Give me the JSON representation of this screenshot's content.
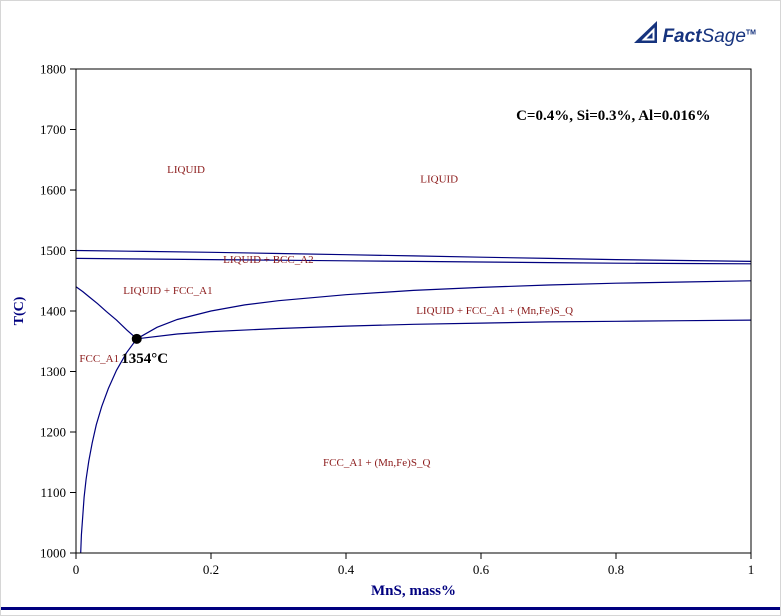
{
  "logo": {
    "fact": "Fact",
    "sage": "Sage",
    "tm": "TM"
  },
  "chart_data": {
    "type": "line",
    "title": "",
    "xlabel": "MnS, mass%",
    "ylabel": "T(C)",
    "xlim": [
      0,
      1
    ],
    "ylim": [
      1000,
      1800
    ],
    "xticks": [
      0,
      0.2,
      0.4,
      0.6,
      0.8,
      1
    ],
    "xtick_labels": [
      "0",
      "0.2",
      "0.4",
      "0.6",
      "0.8",
      "1"
    ],
    "yticks": [
      1000,
      1100,
      1200,
      1300,
      1400,
      1500,
      1600,
      1700,
      1800
    ],
    "grid": false,
    "axis_color": "#000000",
    "line_color": "#00007f",
    "phase_label_color": "#8b1a1a",
    "axis_title_color": "#00007f",
    "series": [
      {
        "name": "liquid-bcc-upper-boundary",
        "points": [
          [
            0,
            1500
          ],
          [
            0.1,
            1498.5
          ],
          [
            0.2,
            1497
          ],
          [
            0.3,
            1495
          ],
          [
            0.4,
            1493
          ],
          [
            0.5,
            1491
          ],
          [
            0.6,
            1489
          ],
          [
            0.7,
            1487
          ],
          [
            0.8,
            1485
          ],
          [
            0.9,
            1483.5
          ],
          [
            1,
            1482
          ]
        ]
      },
      {
        "name": "bcc-fcc-peritectic-line",
        "points": [
          [
            0,
            1487
          ],
          [
            0.1,
            1486
          ],
          [
            0.2,
            1485
          ],
          [
            0.3,
            1484
          ],
          [
            0.4,
            1483
          ],
          [
            0.5,
            1482
          ],
          [
            0.6,
            1481
          ],
          [
            0.7,
            1480
          ],
          [
            0.8,
            1479
          ],
          [
            0.9,
            1478.5
          ],
          [
            1,
            1478
          ]
        ]
      },
      {
        "name": "fcc-liquidus-left-branch",
        "points": [
          [
            0,
            1440
          ],
          [
            0.01,
            1432
          ],
          [
            0.02,
            1423
          ],
          [
            0.032,
            1412
          ],
          [
            0.045,
            1399
          ],
          [
            0.06,
            1385
          ],
          [
            0.075,
            1369
          ],
          [
            0.09,
            1354
          ]
        ]
      },
      {
        "name": "mns-saturation-boundary",
        "points": [
          [
            0.09,
            1354
          ],
          [
            0.12,
            1373
          ],
          [
            0.15,
            1386
          ],
          [
            0.2,
            1400
          ],
          [
            0.25,
            1410
          ],
          [
            0.3,
            1417
          ],
          [
            0.35,
            1422
          ],
          [
            0.4,
            1427
          ],
          [
            0.5,
            1434
          ],
          [
            0.6,
            1439
          ],
          [
            0.7,
            1443
          ],
          [
            0.8,
            1446
          ],
          [
            0.9,
            1448
          ],
          [
            1,
            1450
          ]
        ]
      },
      {
        "name": "fcc-mns-solidus-boundary",
        "points": [
          [
            0.09,
            1354
          ],
          [
            0.15,
            1362
          ],
          [
            0.2,
            1366
          ],
          [
            0.3,
            1371
          ],
          [
            0.4,
            1375
          ],
          [
            0.5,
            1378
          ],
          [
            0.6,
            1380
          ],
          [
            0.7,
            1382
          ],
          [
            0.8,
            1383
          ],
          [
            0.9,
            1384
          ],
          [
            1,
            1385
          ]
        ]
      },
      {
        "name": "fcc-solvus-steep-branch",
        "points": [
          [
            0.09,
            1354
          ],
          [
            0.075,
            1331
          ],
          [
            0.06,
            1302
          ],
          [
            0.048,
            1272
          ],
          [
            0.038,
            1242
          ],
          [
            0.03,
            1212
          ],
          [
            0.024,
            1182
          ],
          [
            0.019,
            1152
          ],
          [
            0.015,
            1122
          ],
          [
            0.012,
            1092
          ],
          [
            0.01,
            1062
          ],
          [
            0.008,
            1030
          ],
          [
            0.007,
            1000
          ]
        ]
      }
    ],
    "points": [
      {
        "name": "invariant-point",
        "x": 0.09,
        "y": 1354,
        "color": "#000000",
        "radius": 5
      }
    ],
    "annotations": [
      {
        "name": "composition-conditions",
        "text": "C=0.4%, Si=0.3%, Al=0.016%",
        "x": 0.652,
        "y": 1716,
        "color": "#000000",
        "bold": true,
        "size": 15,
        "anchor": "start"
      },
      {
        "name": "invariant-temperature",
        "text": "1354°C",
        "x": 0.067,
        "y": 1314,
        "color": "#000000",
        "bold": true,
        "size": 15,
        "anchor": "start"
      }
    ],
    "phase_labels": [
      {
        "text": "LIQUID",
        "x": 0.135,
        "y": 1628
      },
      {
        "text": "LIQUID",
        "x": 0.51,
        "y": 1612
      },
      {
        "text": "LIQUID + BCC_A2",
        "x": 0.218,
        "y": 1479
      },
      {
        "text": "LIQUID + FCC_A1",
        "x": 0.07,
        "y": 1428
      },
      {
        "text": "LIQUID + FCC_A1 + (Mn,Fe)S_Q",
        "x": 0.504,
        "y": 1395
      },
      {
        "text": "FCC_A1",
        "x": 0.005,
        "y": 1316
      },
      {
        "text": "FCC_A1 + (Mn,Fe)S_Q",
        "x": 0.366,
        "y": 1144
      }
    ]
  }
}
